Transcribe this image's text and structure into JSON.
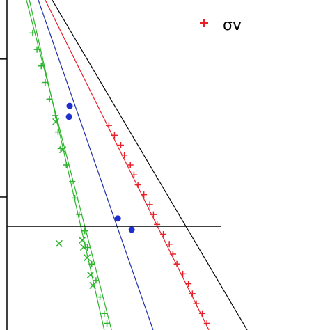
{
  "chart_data": {
    "type": "scatter",
    "xlim": [
      0,
      100
    ],
    "ylim": [
      0,
      100
    ],
    "yticks": [
      82.1,
      40.3
    ],
    "lines": [
      {
        "color": "#000000",
        "x": [
          15.8,
          74.9
        ],
        "y": [
          100,
          0
        ]
      },
      {
        "color": "#e8202a",
        "x": [
          13.7,
          63.3
        ],
        "y": [
          100,
          0
        ]
      },
      {
        "color": "#1f2fa8",
        "x": [
          11.6,
          46.4
        ],
        "y": [
          100,
          0
        ]
      },
      {
        "color": "#2cb52c",
        "x": [
          8.0,
          33.8
        ],
        "y": [
          100,
          0
        ]
      },
      {
        "color": "#2cb52c",
        "x": [
          8.9,
          31.6
        ],
        "y": [
          100,
          0
        ]
      },
      {
        "color": "#000000",
        "x": [
          2.1,
          67.1
        ],
        "y": [
          31.4,
          31.4
        ]
      }
    ],
    "series": [
      {
        "name": "σv",
        "color": "#e8202a",
        "marker": "plus",
        "x": [
          33.0,
          34.7,
          36.6,
          37.7,
          39.5,
          40.6,
          41.8,
          43.6,
          45.4,
          46.5,
          47.6,
          49.5,
          51.3,
          52.4,
          53.6,
          55.4,
          57.1,
          58.3,
          59.5,
          61.3,
          62.7
        ],
        "y": [
          62,
          59,
          56,
          53,
          50,
          47,
          44,
          41,
          38,
          35,
          32,
          29,
          26,
          23,
          20,
          17,
          14,
          11,
          8,
          5,
          2
        ]
      },
      {
        "color": "#1f2fcc",
        "marker": "dot",
        "x": [
          21.1,
          20.9,
          35.7,
          39.9
        ],
        "y": [
          67.9,
          64.6,
          33.8,
          30.4
        ]
      },
      {
        "color": "#2cb52c",
        "marker": "plus",
        "x": [
          9.9,
          11.2,
          12.5,
          13.7,
          15.0,
          16.8,
          17.6,
          18.4,
          20.1,
          21.9,
          22.7,
          24.0,
          25.7,
          26.5,
          27.8,
          29.1,
          30.3,
          31.6,
          32.4
        ],
        "y": [
          90,
          85,
          80,
          75,
          70,
          65,
          60,
          55,
          50,
          45,
          40,
          35,
          30,
          25,
          20,
          15,
          10,
          5,
          2
        ]
      },
      {
        "color": "#2cb52c",
        "marker": "cross",
        "x": [
          17.9,
          25.3,
          24.9,
          26.4,
          27.4,
          28.1,
          16.9,
          19.0
        ],
        "y": [
          26.2,
          25.1,
          27.2,
          21.9,
          16.7,
          13.5,
          63.1,
          54.6
        ]
      }
    ]
  }
}
